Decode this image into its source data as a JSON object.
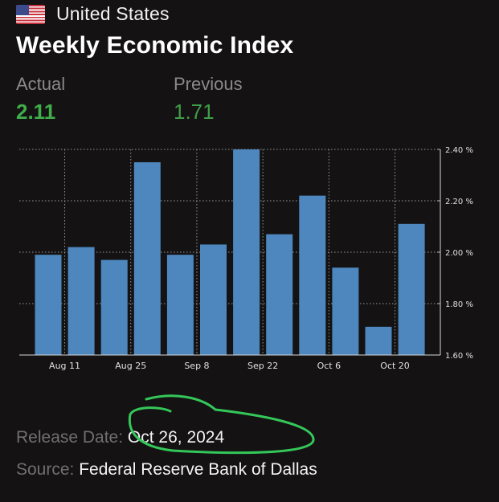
{
  "header": {
    "flag_icon": "us-flag-icon",
    "country": "United States"
  },
  "indicator": {
    "title": "Weekly Economic Index"
  },
  "stats": {
    "actual_label": "Actual",
    "actual_value": "2.11",
    "previous_label": "Previous",
    "previous_value": "1.71"
  },
  "colors": {
    "bar": "#4d87be",
    "actual": "#3fae4a",
    "previous": "#3f9e48",
    "annotation": "#34c759"
  },
  "chart_data": {
    "type": "bar",
    "values": [
      1.99,
      2.02,
      1.97,
      2.35,
      1.99,
      2.03,
      2.4,
      2.07,
      2.22,
      1.94,
      1.71,
      2.11
    ],
    "x_tick_labels": [
      "Aug 11",
      "Aug 25",
      "Sep 8",
      "Sep 22",
      "Oct 6",
      "Oct 20"
    ],
    "x_tick_positions": [
      0,
      2,
      4,
      6,
      8,
      10
    ],
    "y_ticks": [
      {
        "value": 2.4,
        "label": "2.40 %"
      },
      {
        "value": 2.2,
        "label": "2.20 %"
      },
      {
        "value": 2.0,
        "label": "2.00 %"
      },
      {
        "value": 1.8,
        "label": "1.80 %"
      },
      {
        "value": 1.6,
        "label": "1.60 %"
      }
    ],
    "ylim": [
      1.6,
      2.4
    ],
    "grid": true,
    "title": "",
    "xlabel": "",
    "ylabel": ""
  },
  "footer": {
    "release_label": "Release Date:",
    "release_value": "Oct 26, 2024",
    "source_label": "Source:",
    "source_value": "Federal Reserve Bank of Dallas"
  }
}
